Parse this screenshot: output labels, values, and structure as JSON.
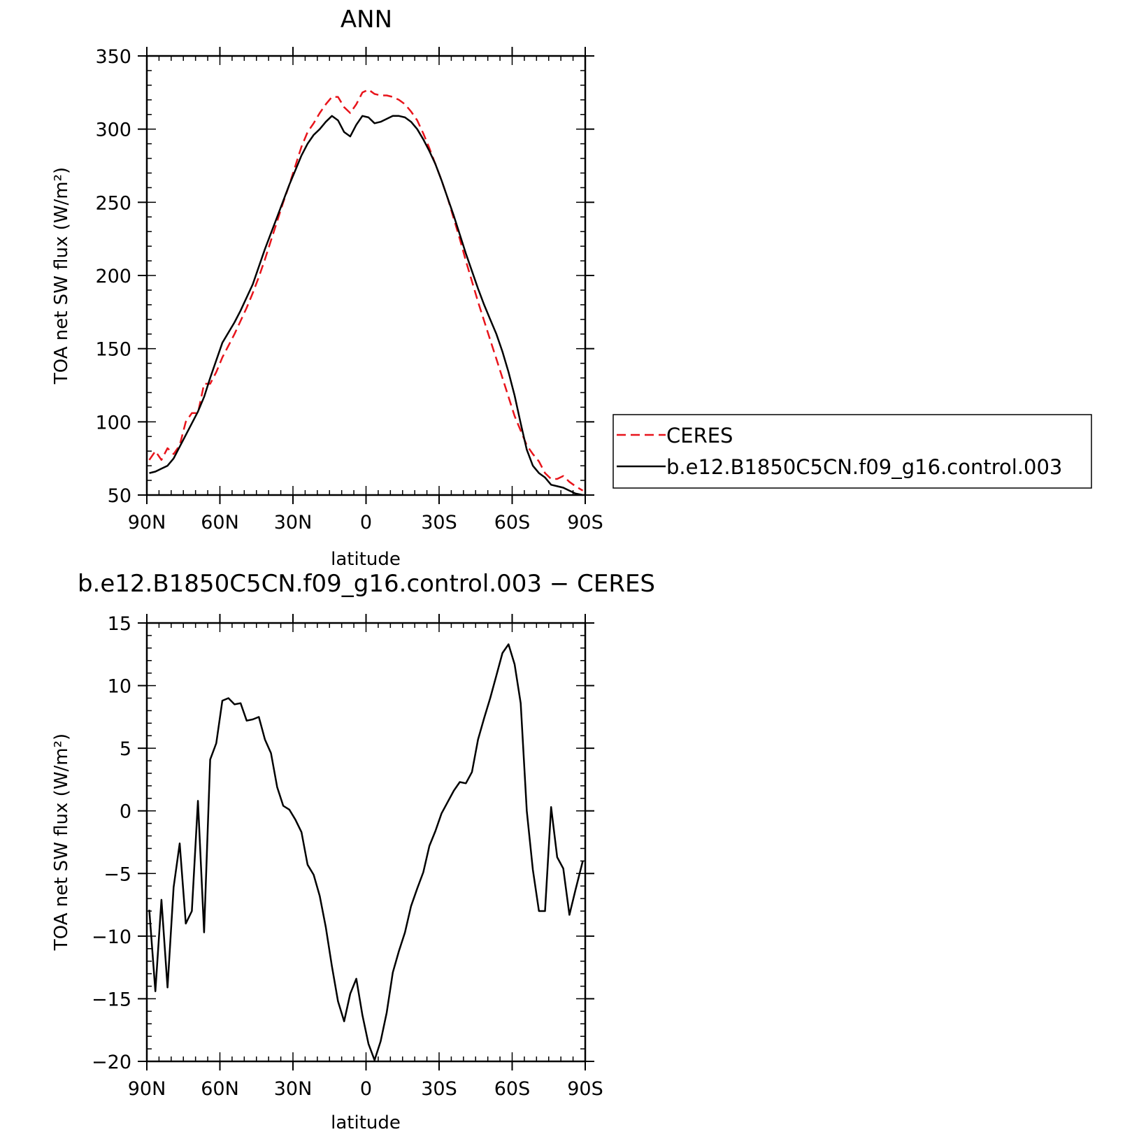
{
  "chart_data": [
    {
      "type": "line",
      "title": "ANN",
      "xlabel": "latitude",
      "ylabel": "TOA net SW flux (W/m²)",
      "xlim": [
        90,
        -90
      ],
      "ylim": [
        50,
        350
      ],
      "xticks": [
        90,
        60,
        30,
        0,
        -30,
        -60,
        -90
      ],
      "xtick_labels": [
        "90N",
        "60N",
        "30N",
        "0",
        "30S",
        "60S",
        "90S"
      ],
      "yticks": [
        50,
        100,
        150,
        200,
        250,
        300,
        350
      ],
      "ytick_labels": [
        "50",
        "100",
        "150",
        "200",
        "250",
        "300",
        "350"
      ],
      "grid": false,
      "legend_position": "right",
      "series": [
        {
          "name": "CERES",
          "color": "#e8141b",
          "dash": "dashed",
          "x": [
            89,
            86.5,
            84,
            81.5,
            79,
            76.5,
            74,
            71.5,
            69,
            66.5,
            64,
            61.5,
            59,
            56.5,
            54,
            51.5,
            49,
            46.5,
            44,
            41.5,
            39,
            36.5,
            34,
            31.5,
            29,
            26.5,
            24,
            21.5,
            19,
            16.5,
            14,
            11.5,
            9,
            6.5,
            4,
            1.5,
            -1,
            -3.5,
            -6,
            -8.5,
            -11,
            -13.5,
            -16,
            -18.5,
            -21,
            -23.5,
            -26,
            -28.5,
            -31,
            -33.5,
            -36,
            -38.5,
            -41,
            -43.5,
            -46,
            -48.5,
            -51,
            -53.5,
            -56,
            -58.5,
            -61,
            -63.5,
            -66,
            -68.5,
            -71,
            -73.5,
            -76,
            -78.5,
            -81,
            -83.5,
            -86,
            -89
          ],
          "y": [
            74,
            80,
            74,
            82,
            78,
            84,
            100,
            106,
            106,
            126,
            126,
            134,
            144,
            152,
            160,
            169,
            178,
            188,
            199,
            211,
            224,
            237,
            250,
            262,
            275,
            288,
            298,
            304,
            311,
            317,
            322,
            322,
            315,
            311,
            317,
            325,
            327,
            324,
            323,
            323,
            322,
            320,
            317,
            312,
            306,
            297,
            287,
            276,
            265,
            253,
            239,
            225,
            210,
            196,
            182,
            169,
            156,
            143,
            130,
            117,
            104,
            94,
            84,
            78,
            73,
            65,
            61,
            61,
            63,
            59,
            56,
            53
          ]
        },
        {
          "name": "b.e12.B1850C5CN.f09_g16.control.003",
          "color": "#000000",
          "dash": "solid",
          "x": [
            89,
            86.5,
            84,
            81.5,
            79,
            76.5,
            74,
            71.5,
            69,
            66.5,
            64,
            61.5,
            59,
            56.5,
            54,
            51.5,
            49,
            46.5,
            44,
            41.5,
            39,
            36.5,
            34,
            31.5,
            29,
            26.5,
            24,
            21.5,
            19,
            16.5,
            14,
            11.5,
            9,
            6.5,
            4,
            1.5,
            -1,
            -3.5,
            -6,
            -8.5,
            -11,
            -13.5,
            -16,
            -18.5,
            -21,
            -23.5,
            -26,
            -28.5,
            -31,
            -33.5,
            -36,
            -38.5,
            -41,
            -43.5,
            -46,
            -48.5,
            -51,
            -53.5,
            -56,
            -58.5,
            -61,
            -63.5,
            -66,
            -68.5,
            -71,
            -73.5,
            -76,
            -78.5,
            -81,
            -83.5,
            -86,
            -89
          ],
          "y": [
            65,
            66,
            68,
            70,
            75,
            83,
            91,
            99,
            107,
            117,
            130,
            142,
            154,
            161,
            168,
            176,
            185,
            194,
            206,
            218,
            229,
            240,
            251,
            262,
            272,
            282,
            290,
            296,
            300,
            305,
            309,
            306,
            298,
            295,
            303,
            309,
            308,
            304,
            305,
            307,
            309,
            309,
            308,
            305,
            300,
            293,
            285,
            276,
            265,
            253,
            241,
            228,
            215,
            203,
            191,
            180,
            170,
            160,
            148,
            134,
            118,
            99,
            81,
            70,
            65,
            62,
            57,
            56,
            55,
            53,
            51,
            50
          ]
        }
      ]
    },
    {
      "type": "line",
      "title": "b.e12.B1850C5CN.f09_g16.control.003 − CERES",
      "xlabel": "latitude",
      "ylabel": "TOA net SW flux (W/m²)",
      "xlim": [
        90,
        -90
      ],
      "ylim": [
        -20,
        15
      ],
      "xticks": [
        90,
        60,
        30,
        0,
        -30,
        -60,
        -90
      ],
      "xtick_labels": [
        "90N",
        "60N",
        "30N",
        "0",
        "30S",
        "60S",
        "90S"
      ],
      "yticks": [
        -20,
        -15,
        -10,
        -5,
        0,
        5,
        10,
        15
      ],
      "ytick_labels": [
        "−20",
        "−15",
        "−10",
        "−5",
        "0",
        "5",
        "10",
        "15"
      ],
      "grid": false,
      "series": [
        {
          "color": "#000000",
          "dash": "solid",
          "x": [
            89,
            86.5,
            84,
            81.5,
            79,
            76.5,
            74,
            71.5,
            69,
            66.5,
            64,
            61.5,
            59,
            56.5,
            54,
            51.5,
            49,
            46.5,
            44,
            41.5,
            39,
            36.5,
            34,
            31.5,
            29,
            26.5,
            24,
            21.5,
            19,
            16.5,
            14,
            11.5,
            9,
            6.5,
            4,
            1.5,
            -1,
            -3.5,
            -6,
            -8.5,
            -11,
            -13.5,
            -16,
            -18.5,
            -21,
            -23.5,
            -26,
            -28.5,
            -31,
            -33.5,
            -36,
            -38.5,
            -41,
            -43.5,
            -46,
            -48.5,
            -51,
            -53.5,
            -56,
            -58.5,
            -61,
            -63.5,
            -66,
            -68.5,
            -71,
            -73.5,
            -76,
            -78.5,
            -81,
            -83.5,
            -86,
            -89
          ],
          "y": [
            -7.9,
            -14.4,
            -7.1,
            -14.1,
            -6.1,
            -2.6,
            -9.0,
            -8.0,
            0.8,
            -9.7,
            4.1,
            5.4,
            8.8,
            9.0,
            8.5,
            8.6,
            7.2,
            7.3,
            7.5,
            5.7,
            4.6,
            1.9,
            0.4,
            0.1,
            -0.7,
            -1.7,
            -4.3,
            -5.1,
            -6.8,
            -9.3,
            -12.4,
            -15.2,
            -16.8,
            -14.6,
            -13.4,
            -16.3,
            -18.6,
            -19.9,
            -18.4,
            -16.1,
            -12.9,
            -11.2,
            -9.7,
            -7.6,
            -6.2,
            -4.9,
            -2.8,
            -1.6,
            -0.2,
            0.7,
            1.6,
            2.3,
            2.2,
            3.1,
            5.7,
            7.4,
            9.0,
            10.8,
            12.6,
            13.3,
            11.7,
            8.6,
            0.0,
            -4.7,
            -8.0,
            -8.0,
            0.3,
            -3.7,
            -4.6,
            -8.3,
            -6.3,
            -4.0
          ]
        }
      ]
    }
  ]
}
